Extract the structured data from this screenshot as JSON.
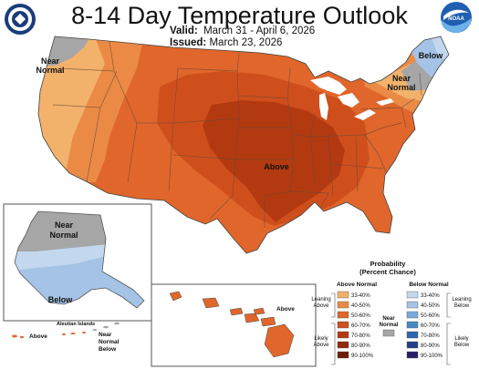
{
  "title": "8-14 Day Temperature Outlook",
  "valid_label": "Valid:",
  "valid_dates": "March 31 - April 6, 2026",
  "issued_label": "Issued:",
  "issued_date": "March 23, 2026",
  "logos": {
    "left": "noaa-cpc-seal",
    "right": "noaa-logo",
    "right_text": "NOAA"
  },
  "regions": {
    "near_normal_northwest": [
      "Near",
      "Normal"
    ],
    "near_normal_northeast": [
      "Near",
      "Normal"
    ],
    "below_northeast": "Below",
    "above_center": "Above",
    "alaska_near_normal": [
      "Near",
      "Normal"
    ],
    "alaska_below": "Below",
    "alaska_above": "Above",
    "aleutian_islands": "Aleutian Islands",
    "aleutian_near_normal_below": [
      "Near",
      "Normal",
      "Below"
    ],
    "hawaii_above": "Above"
  },
  "legend": {
    "title": [
      "Probability",
      "(Percent Chance)"
    ],
    "above_header": "Above Normal",
    "below_header": "Below Normal",
    "near_header": [
      "Near",
      "Normal"
    ],
    "leaning_above": [
      "Leaning",
      "Above"
    ],
    "likely_above": [
      "Likely",
      "Above"
    ],
    "leaning_below": [
      "Leaning",
      "Below"
    ],
    "likely_below": [
      "Likely",
      "Below"
    ],
    "ranges": [
      "33-40%",
      "40-50%",
      "50-60%",
      "60-70%",
      "70-80%",
      "80-90%",
      "90-100%"
    ],
    "above_colors": [
      "#f2b26b",
      "#ea8a45",
      "#e0662b",
      "#cf4f1c",
      "#b33a10",
      "#922a0b",
      "#6b1e08"
    ],
    "below_colors": [
      "#c3d8ee",
      "#a4c3e6",
      "#7aaad8",
      "#4a87c5",
      "#2b65ad",
      "#233f8c",
      "#2a1f66"
    ],
    "near_color": "#a6a6a6"
  }
}
